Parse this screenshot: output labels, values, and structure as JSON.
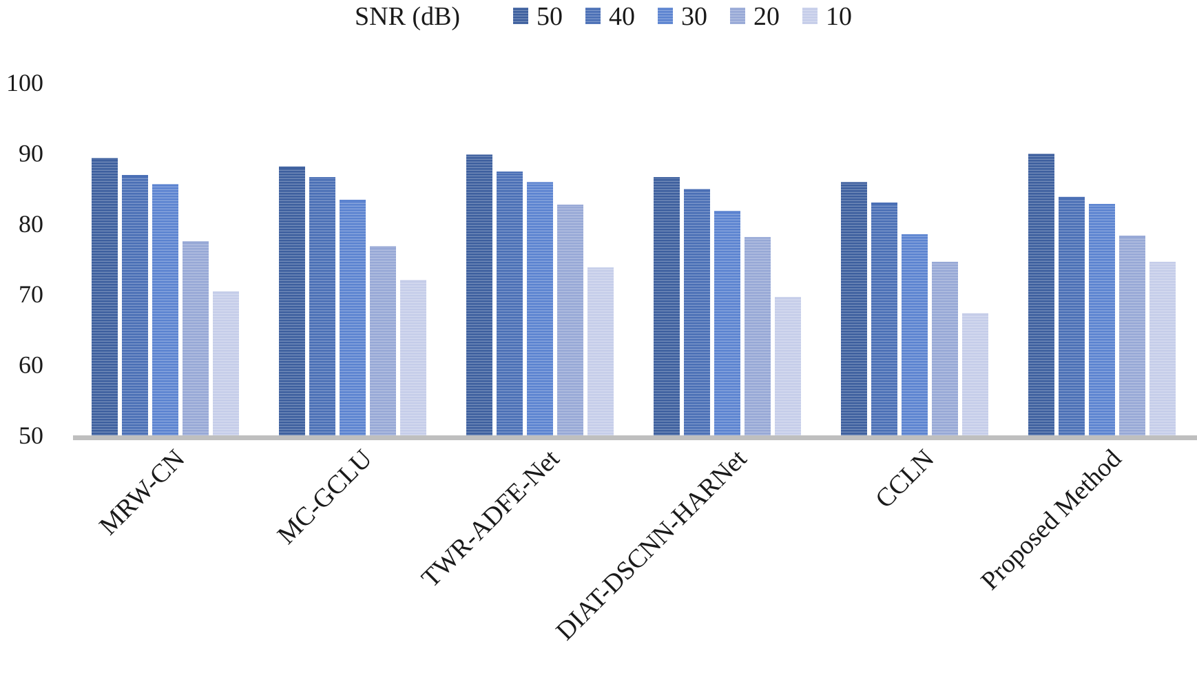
{
  "chart_data": {
    "type": "bar",
    "title": "",
    "xlabel": "",
    "ylabel": "",
    "ylim": [
      50,
      100
    ],
    "yticks": [
      50,
      60,
      70,
      80,
      90,
      100
    ],
    "grid": false,
    "legend_title": "SNR (dB)",
    "legend_position": "top-center",
    "categories": [
      "MRW-CN",
      "MC-GCLU",
      "TWR-ADFE-Net",
      "DIAT-DSCNN-HARNet",
      "CCLN",
      "Proposed Method"
    ],
    "series": [
      {
        "name": "50",
        "color": "#3d5f9e",
        "values": [
          89.3,
          88.1,
          89.8,
          86.6,
          85.9,
          89.9
        ]
      },
      {
        "name": "40",
        "color": "#4a6fb5",
        "values": [
          86.9,
          86.6,
          87.4,
          84.9,
          83.0,
          83.8
        ]
      },
      {
        "name": "30",
        "color": "#5b83d0",
        "values": [
          85.6,
          83.4,
          85.9,
          81.8,
          78.5,
          82.8
        ]
      },
      {
        "name": "20",
        "color": "#97a8d6",
        "values": [
          77.5,
          76.8,
          82.7,
          78.1,
          74.6,
          78.3
        ]
      },
      {
        "name": "10",
        "color": "#c5cde9",
        "values": [
          70.4,
          72.0,
          73.8,
          69.6,
          67.3,
          74.6
        ]
      }
    ]
  }
}
